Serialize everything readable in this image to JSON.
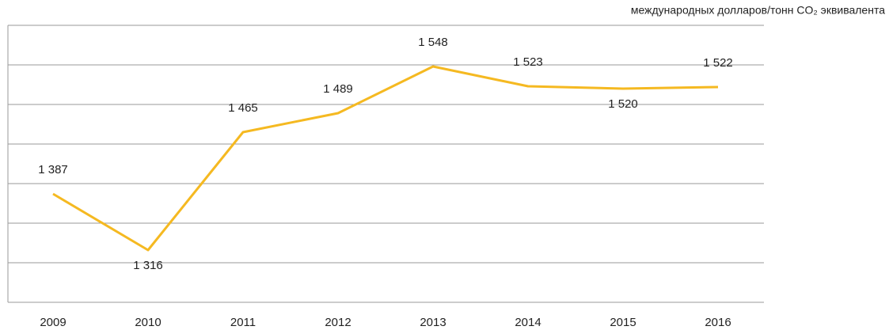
{
  "chart_data": {
    "type": "line",
    "y_label": "международных долларов/тонн CO₂ эквивалента",
    "categories": [
      "2009",
      "2010",
      "2011",
      "2012",
      "2013",
      "2014",
      "2015",
      "2016"
    ],
    "series": [
      {
        "color": "#f5b921",
        "values": [
          1387,
          1316,
          1465,
          1489,
          1548,
          1523,
          1520,
          1522
        ],
        "value_labels": [
          "1 387",
          "1 316",
          "1 465",
          "1 489",
          "1 548",
          "1 523",
          "1 520",
          "1 522"
        ]
      }
    ],
    "ylim": [
      1250,
      1600
    ],
    "yticks": [
      1250,
      1300,
      1350,
      1400,
      1450,
      1500,
      1550,
      1600
    ],
    "grid": true
  }
}
